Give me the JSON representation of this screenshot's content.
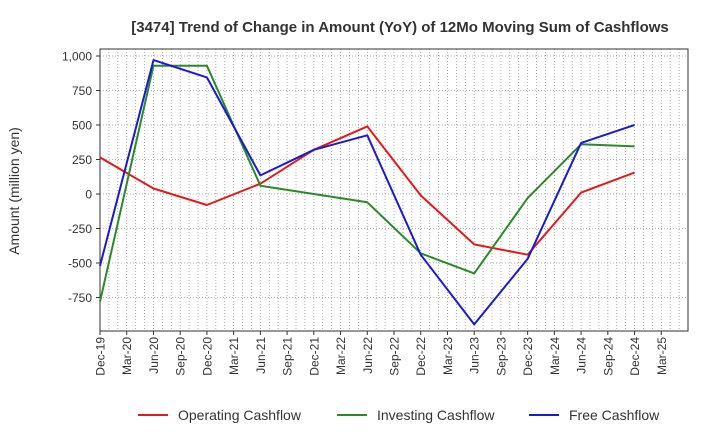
{
  "chart_data": {
    "type": "line",
    "title": "[3474]  Trend of Change in Amount (YoY) of 12Mo Moving Sum of Cashflows",
    "xlabel": "",
    "ylabel": "Amount (million yen)",
    "ylim": [
      -1000,
      1000
    ],
    "yticks": [
      1000,
      750,
      500,
      250,
      0,
      -250,
      -500,
      -750
    ],
    "ytick_labels": [
      "1,000",
      "750",
      "500",
      "250",
      "0",
      "-250",
      "-500",
      "-750"
    ],
    "categories": [
      "Dec-19",
      "Mar-20",
      "Jun-20",
      "Sep-20",
      "Dec-20",
      "Mar-21",
      "Jun-21",
      "Sep-21",
      "Dec-21",
      "Mar-22",
      "Jun-22",
      "Sep-22",
      "Dec-22",
      "Mar-23",
      "Jun-23",
      "Sep-23",
      "Dec-23",
      "Mar-24",
      "Jun-24",
      "Sep-24",
      "Dec-24",
      "Mar-25"
    ],
    "grid": true,
    "legend_position": "bottom",
    "series": [
      {
        "name": "Operating Cashflow",
        "color": "#e41a1a",
        "values": [
          265,
          null,
          40,
          null,
          -80,
          null,
          75,
          null,
          320,
          null,
          490,
          null,
          -10,
          null,
          -365,
          null,
          -440,
          null,
          10,
          null,
          155,
          null
        ]
      },
      {
        "name": "Investing Cashflow",
        "color": "#2a8a2a",
        "values": [
          -780,
          null,
          930,
          null,
          930,
          null,
          60,
          null,
          0,
          null,
          -60,
          null,
          -430,
          null,
          -575,
          null,
          -30,
          null,
          360,
          null,
          345,
          null
        ]
      },
      {
        "name": "Free Cashflow",
        "color": "#1a1ad6",
        "values": [
          -520,
          null,
          970,
          null,
          845,
          null,
          135,
          null,
          320,
          null,
          425,
          null,
          -440,
          null,
          -945,
          null,
          -470,
          null,
          370,
          null,
          500,
          null
        ]
      }
    ]
  }
}
